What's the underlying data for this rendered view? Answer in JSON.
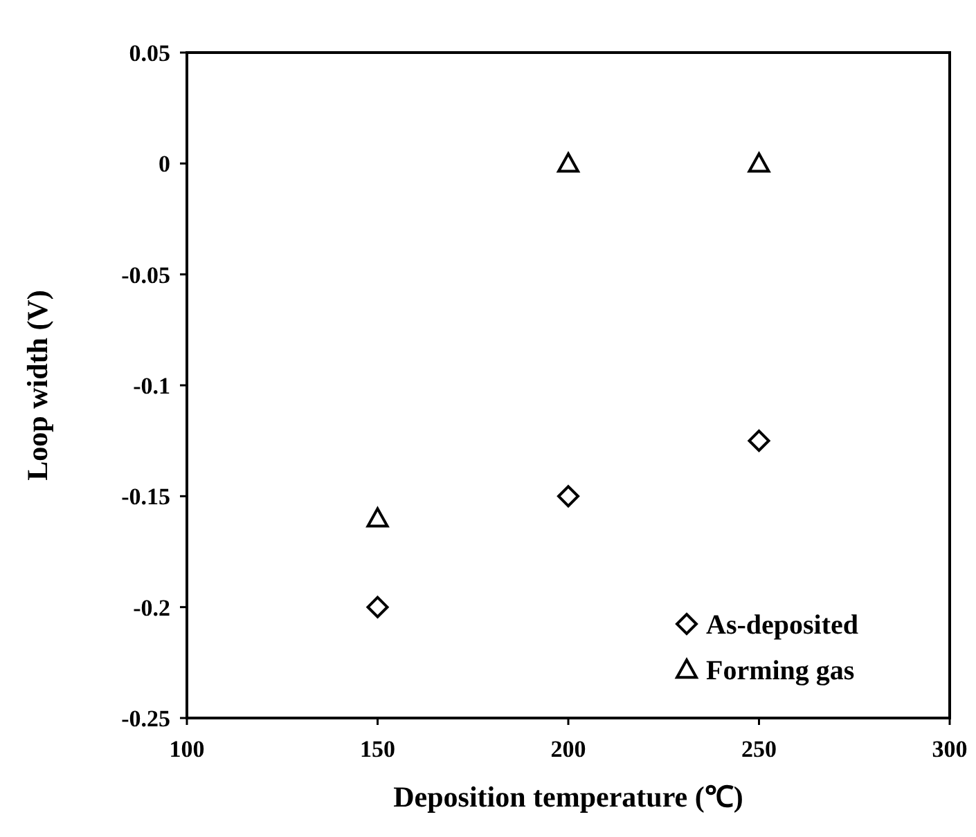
{
  "chart_data": {
    "type": "scatter",
    "xlabel": "Deposition temperature (℃)",
    "ylabel": "Loop width (V)",
    "x": [
      150,
      200,
      250
    ],
    "series": [
      {
        "name": "As-deposited",
        "color": "#000000",
        "marker": "diamond",
        "values": [
          -0.2,
          -0.15,
          -0.125
        ]
      },
      {
        "name": "Forming gas",
        "color": "#000000",
        "marker": "triangle",
        "values": [
          -0.16,
          0,
          0
        ]
      }
    ],
    "xlim": [
      100,
      300
    ],
    "xticks": [
      100,
      150,
      200,
      250,
      300
    ],
    "ylim": [
      -0.25,
      0.05
    ],
    "yticks": [
      -0.25,
      -0.2,
      -0.15,
      -0.1,
      -0.05,
      0,
      0.05
    ],
    "grid": false,
    "legend": "bottom right"
  }
}
